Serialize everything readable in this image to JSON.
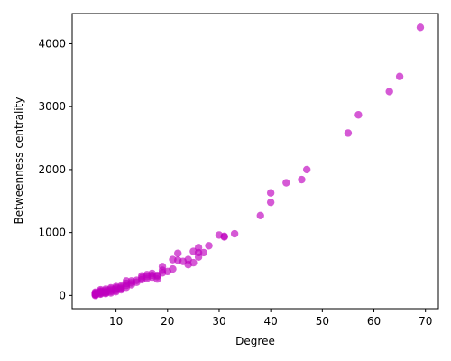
{
  "chart_data": {
    "type": "scatter",
    "title": "",
    "xlabel": "Degree",
    "ylabel": "Betweenness centrality",
    "xlim": [
      1.5,
      72.5
    ],
    "ylim": [
      -210,
      4480
    ],
    "xticks": [
      10,
      20,
      30,
      40,
      50,
      60,
      70
    ],
    "yticks": [
      0,
      1000,
      2000,
      3000,
      4000
    ],
    "grid": false,
    "legend": "none",
    "marker_color": "#bf00bf",
    "marker_opacity": 0.65,
    "series": [
      {
        "x": [
          6,
          6,
          6,
          6,
          6,
          6,
          6,
          6,
          7,
          7,
          7,
          7,
          7,
          7,
          7,
          8,
          8,
          8,
          8,
          8,
          8,
          9,
          9,
          9,
          9,
          9,
          10,
          10,
          10,
          10,
          10,
          11,
          11,
          11,
          11,
          12,
          12,
          12,
          12,
          13,
          13,
          13,
          14,
          14,
          15,
          15,
          15,
          16,
          16,
          16,
          17,
          17,
          17,
          18,
          18,
          18,
          19,
          19,
          19,
          20,
          21,
          21,
          22,
          22,
          23,
          24,
          24,
          25,
          25,
          26,
          26,
          26,
          27,
          28,
          30,
          31,
          31,
          33,
          38,
          40,
          40,
          43,
          46,
          47,
          55,
          57,
          63,
          65,
          69
        ],
        "y": [
          0,
          10,
          20,
          30,
          40,
          15,
          25,
          50,
          30,
          50,
          70,
          20,
          90,
          40,
          60,
          40,
          60,
          80,
          100,
          30,
          50,
          60,
          80,
          100,
          120,
          40,
          80,
          100,
          120,
          140,
          60,
          110,
          130,
          150,
          90,
          130,
          160,
          190,
          230,
          170,
          200,
          230,
          210,
          240,
          250,
          280,
          310,
          270,
          300,
          330,
          290,
          320,
          350,
          320,
          260,
          300,
          360,
          400,
          460,
          380,
          420,
          570,
          560,
          670,
          540,
          490,
          570,
          520,
          700,
          610,
          680,
          760,
          680,
          790,
          960,
          940,
          930,
          980,
          1270,
          1480,
          1630,
          1790,
          1840,
          2000,
          2580,
          2870,
          3240,
          3480,
          4260
        ]
      }
    ]
  }
}
